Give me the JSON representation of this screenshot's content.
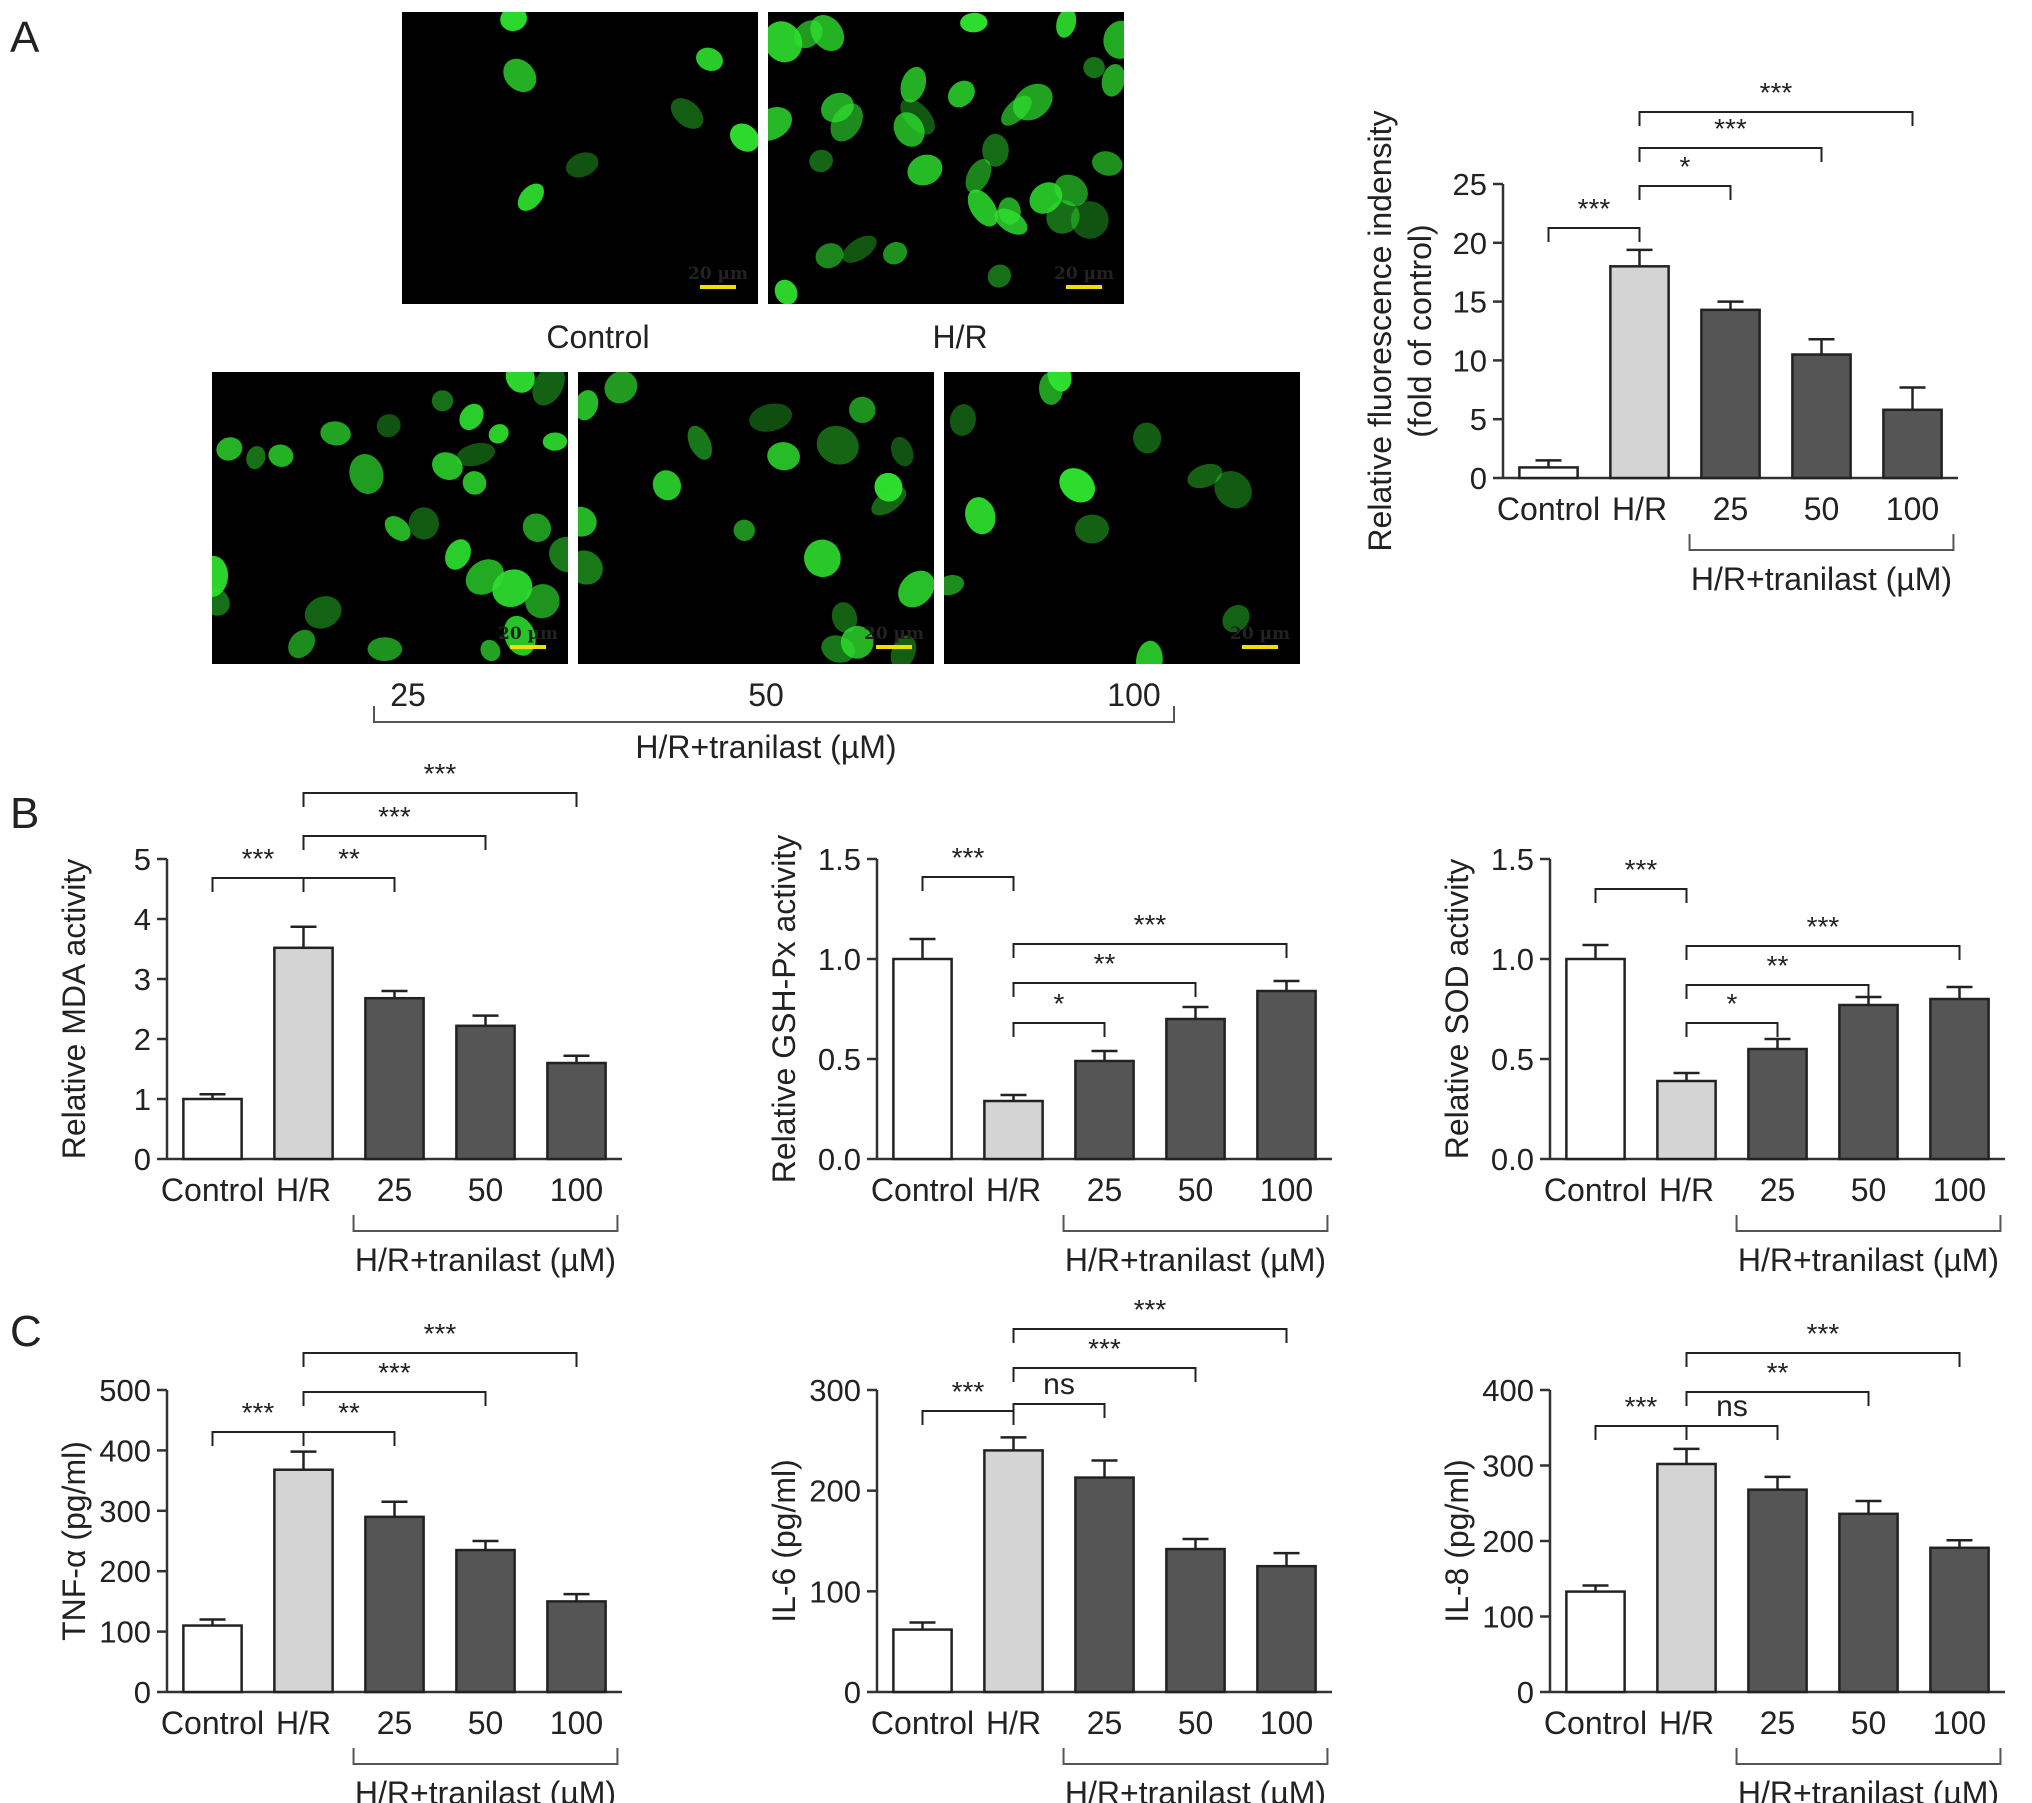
{
  "panel_letters": [
    "A",
    "B",
    "C"
  ],
  "micrographs": [
    {
      "label": "Control",
      "scale_bar": "20 µm"
    },
    {
      "label": "H/R",
      "scale_bar": "20 µm"
    },
    {
      "label": "25",
      "scale_bar": "20 µm"
    },
    {
      "label": "50",
      "scale_bar": "20 µm"
    },
    {
      "label": "100",
      "scale_bar": "20 µm"
    }
  ],
  "micrograph_group_label": "H/R+tranilast (µM)",
  "colors": {
    "control": "#ffffff",
    "hr": "#d4d4d4",
    "tranilast": "#555555",
    "fluorescence": "#2ee02e",
    "scale": "#f0e000"
  },
  "chart_data": [
    {
      "panel": "A",
      "type": "bar",
      "categories": [
        "Control",
        "H/R",
        "25",
        "50",
        "100"
      ],
      "values": [
        0.9,
        18.0,
        14.3,
        10.5,
        5.8
      ],
      "errors": [
        0.6,
        1.4,
        0.7,
        1.3,
        1.9
      ],
      "ylabel": "Relative fluorescence indensity\n(fold of control)",
      "group_label": "H/R+tranilast (µM)",
      "ylim": [
        0,
        25
      ],
      "yticks": [
        "0",
        "5",
        "10",
        "15",
        "20",
        "25"
      ],
      "significance": [
        {
          "from": 0,
          "to": 1,
          "label": "***"
        },
        {
          "from": 1,
          "to": 2,
          "label": "*"
        },
        {
          "from": 1,
          "to": 3,
          "label": "***"
        },
        {
          "from": 1,
          "to": 4,
          "label": "***"
        }
      ]
    },
    {
      "panel": "B",
      "type": "bar",
      "categories": [
        "Control",
        "H/R",
        "25",
        "50",
        "100"
      ],
      "values": [
        1.0,
        3.52,
        2.68,
        2.22,
        1.6
      ],
      "errors": [
        0.08,
        0.35,
        0.12,
        0.17,
        0.12
      ],
      "ylabel": "Relative MDA activity",
      "group_label": "H/R+tranilast (µM)",
      "ylim": [
        0,
        5
      ],
      "yticks": [
        "0",
        "1",
        "2",
        "3",
        "4",
        "5"
      ],
      "significance": [
        {
          "from": 0,
          "to": 1,
          "label": "***"
        },
        {
          "from": 1,
          "to": 2,
          "label": "**"
        },
        {
          "from": 1,
          "to": 3,
          "label": "***"
        },
        {
          "from": 1,
          "to": 4,
          "label": "***"
        }
      ]
    },
    {
      "panel": "B",
      "type": "bar",
      "categories": [
        "Control",
        "H/R",
        "25",
        "50",
        "100"
      ],
      "values": [
        1.0,
        0.29,
        0.49,
        0.7,
        0.84
      ],
      "errors": [
        0.1,
        0.03,
        0.05,
        0.06,
        0.05
      ],
      "ylabel": "Relative GSH-Px activity",
      "group_label": "H/R+tranilast (µM)",
      "ylim": [
        0,
        1.5
      ],
      "yticks": [
        "0.0",
        "0.5",
        "1.0",
        "1.5"
      ],
      "significance": [
        {
          "from": 0,
          "to": 1,
          "label": "***"
        },
        {
          "from": 1,
          "to": 2,
          "label": "*"
        },
        {
          "from": 1,
          "to": 3,
          "label": "**"
        },
        {
          "from": 1,
          "to": 4,
          "label": "***"
        }
      ]
    },
    {
      "panel": "B",
      "type": "bar",
      "categories": [
        "Control",
        "H/R",
        "25",
        "50",
        "100"
      ],
      "values": [
        1.0,
        0.39,
        0.55,
        0.77,
        0.8
      ],
      "errors": [
        0.07,
        0.04,
        0.05,
        0.04,
        0.06
      ],
      "ylabel": "Relative SOD activity",
      "group_label": "H/R+tranilast (µM)",
      "ylim": [
        0,
        1.5
      ],
      "yticks": [
        "0.0",
        "0.5",
        "1.0",
        "1.5"
      ],
      "significance": [
        {
          "from": 0,
          "to": 1,
          "label": "***"
        },
        {
          "from": 1,
          "to": 2,
          "label": "*"
        },
        {
          "from": 1,
          "to": 3,
          "label": "**"
        },
        {
          "from": 1,
          "to": 4,
          "label": "***"
        }
      ]
    },
    {
      "panel": "C",
      "type": "bar",
      "categories": [
        "Control",
        "H/R",
        "25",
        "50",
        "100"
      ],
      "values": [
        110,
        368,
        290,
        235,
        150
      ],
      "errors": [
        10,
        30,
        25,
        15,
        12
      ],
      "ylabel": "TNF-α (pg/ml)",
      "group_label": "H/R+tranilast (µM)",
      "ylim": [
        0,
        500
      ],
      "yticks": [
        "0",
        "100",
        "200",
        "300",
        "400",
        "500"
      ],
      "significance": [
        {
          "from": 0,
          "to": 1,
          "label": "***"
        },
        {
          "from": 1,
          "to": 2,
          "label": "**"
        },
        {
          "from": 1,
          "to": 3,
          "label": "***"
        },
        {
          "from": 1,
          "to": 4,
          "label": "***"
        }
      ]
    },
    {
      "panel": "C",
      "type": "bar",
      "categories": [
        "Control",
        "H/R",
        "25",
        "50",
        "100"
      ],
      "values": [
        62,
        240,
        213,
        142,
        125
      ],
      "errors": [
        7,
        13,
        17,
        10,
        13
      ],
      "ylabel": "IL-6 (pg/ml)",
      "group_label": "H/R+tranilast (µM)",
      "ylim": [
        0,
        300
      ],
      "yticks": [
        "0",
        "100",
        "200",
        "300"
      ],
      "significance": [
        {
          "from": 0,
          "to": 1,
          "label": "***"
        },
        {
          "from": 1,
          "to": 2,
          "label": "ns"
        },
        {
          "from": 1,
          "to": 3,
          "label": "***"
        },
        {
          "from": 1,
          "to": 4,
          "label": "***"
        }
      ]
    },
    {
      "panel": "C",
      "type": "bar",
      "categories": [
        "Control",
        "H/R",
        "25",
        "50",
        "100"
      ],
      "values": [
        133,
        302,
        268,
        236,
        191
      ],
      "errors": [
        8,
        20,
        17,
        17,
        10
      ],
      "ylabel": "IL-8 (pg/ml)",
      "group_label": "H/R+tranilast (µM)",
      "ylim": [
        0,
        400
      ],
      "yticks": [
        "0",
        "100",
        "200",
        "300",
        "400"
      ],
      "significance": [
        {
          "from": 0,
          "to": 1,
          "label": "***"
        },
        {
          "from": 1,
          "to": 2,
          "label": "ns"
        },
        {
          "from": 1,
          "to": 3,
          "label": "**"
        },
        {
          "from": 1,
          "to": 4,
          "label": "***"
        }
      ]
    }
  ]
}
